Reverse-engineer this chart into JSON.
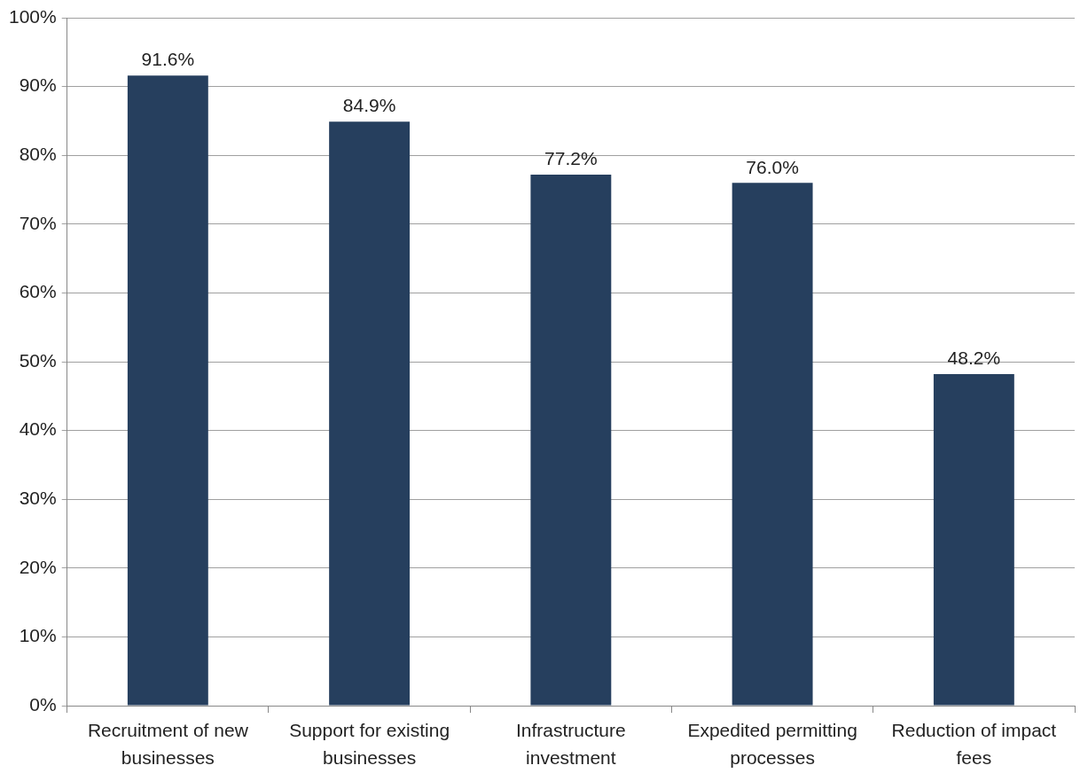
{
  "chart_data": {
    "type": "bar",
    "categories": [
      "Recruitment of new businesses",
      "Support for existing businesses",
      "Infrastructure investment",
      "Expedited permitting processes",
      "Reduction of impact fees"
    ],
    "values": [
      91.6,
      84.9,
      77.2,
      76.0,
      48.2
    ],
    "value_labels": [
      "91.6%",
      "84.9%",
      "77.2%",
      "76.0%",
      "48.2%"
    ],
    "color": "#263f5e",
    "ylim": [
      0,
      100
    ],
    "yticks": [
      {
        "value": 0,
        "label": "0%"
      },
      {
        "value": 10,
        "label": "10%"
      },
      {
        "value": 20,
        "label": "20%"
      },
      {
        "value": 30,
        "label": "30%"
      },
      {
        "value": 40,
        "label": "40%"
      },
      {
        "value": 50,
        "label": "50%"
      },
      {
        "value": 60,
        "label": "60%"
      },
      {
        "value": 70,
        "label": "70%"
      },
      {
        "value": 80,
        "label": "80%"
      },
      {
        "value": 90,
        "label": "90%"
      },
      {
        "value": 100,
        "label": "100%"
      }
    ],
    "grid": "y",
    "legend": false
  }
}
